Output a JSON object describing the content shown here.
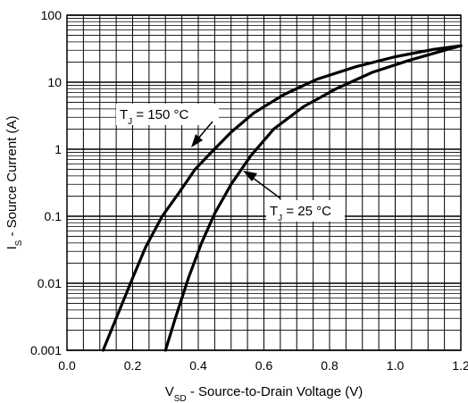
{
  "chart_data": {
    "type": "line",
    "title": "",
    "xlabel": {
      "main": "V",
      "sub": "SD",
      "rest": " - Source-to-Drain Voltage (V)"
    },
    "ylabel": {
      "main": "I",
      "sub": "S",
      "rest": " - Source Current (A)"
    },
    "xlim": [
      0.0,
      1.2
    ],
    "ylim": [
      0.001,
      100
    ],
    "yscale": "log",
    "grid": true,
    "x_ticks": [
      {
        "value": 0.0,
        "label": "0.0"
      },
      {
        "value": 0.2,
        "label": "0.2"
      },
      {
        "value": 0.4,
        "label": "0.4"
      },
      {
        "value": 0.6,
        "label": "0.6"
      },
      {
        "value": 0.8,
        "label": "0.8"
      },
      {
        "value": 1.0,
        "label": "1.0"
      },
      {
        "value": 1.2,
        "label": "1.2"
      }
    ],
    "y_ticks": [
      {
        "value": 0.001,
        "label": "0.001"
      },
      {
        "value": 0.01,
        "label": "0.01"
      },
      {
        "value": 0.1,
        "label": "0.1"
      },
      {
        "value": 1,
        "label": "1"
      },
      {
        "value": 10,
        "label": "10"
      },
      {
        "value": 100,
        "label": "100"
      }
    ],
    "series": [
      {
        "annotation": {
          "main": "T",
          "sub": "J",
          "rest": " = 150 °C"
        },
        "x": [
          0.11,
          0.15,
          0.2,
          0.24,
          0.29,
          0.34,
          0.39,
          0.44,
          0.5,
          0.57,
          0.66,
          0.76,
          0.88,
          1.0,
          1.12,
          1.2
        ],
        "y": [
          0.001,
          0.003,
          0.012,
          0.035,
          0.1,
          0.22,
          0.5,
          0.9,
          1.8,
          3.5,
          6.5,
          11,
          17,
          24,
          31,
          35
        ]
      },
      {
        "annotation": {
          "main": "T",
          "sub": "J",
          "rest": " = 25 °C"
        },
        "x": [
          0.3,
          0.33,
          0.37,
          0.41,
          0.45,
          0.5,
          0.56,
          0.63,
          0.72,
          0.82,
          0.93,
          1.04,
          1.14,
          1.2
        ],
        "y": [
          0.001,
          0.003,
          0.012,
          0.04,
          0.11,
          0.3,
          0.8,
          2.0,
          4.3,
          8.0,
          14,
          21,
          29,
          35
        ]
      }
    ]
  }
}
